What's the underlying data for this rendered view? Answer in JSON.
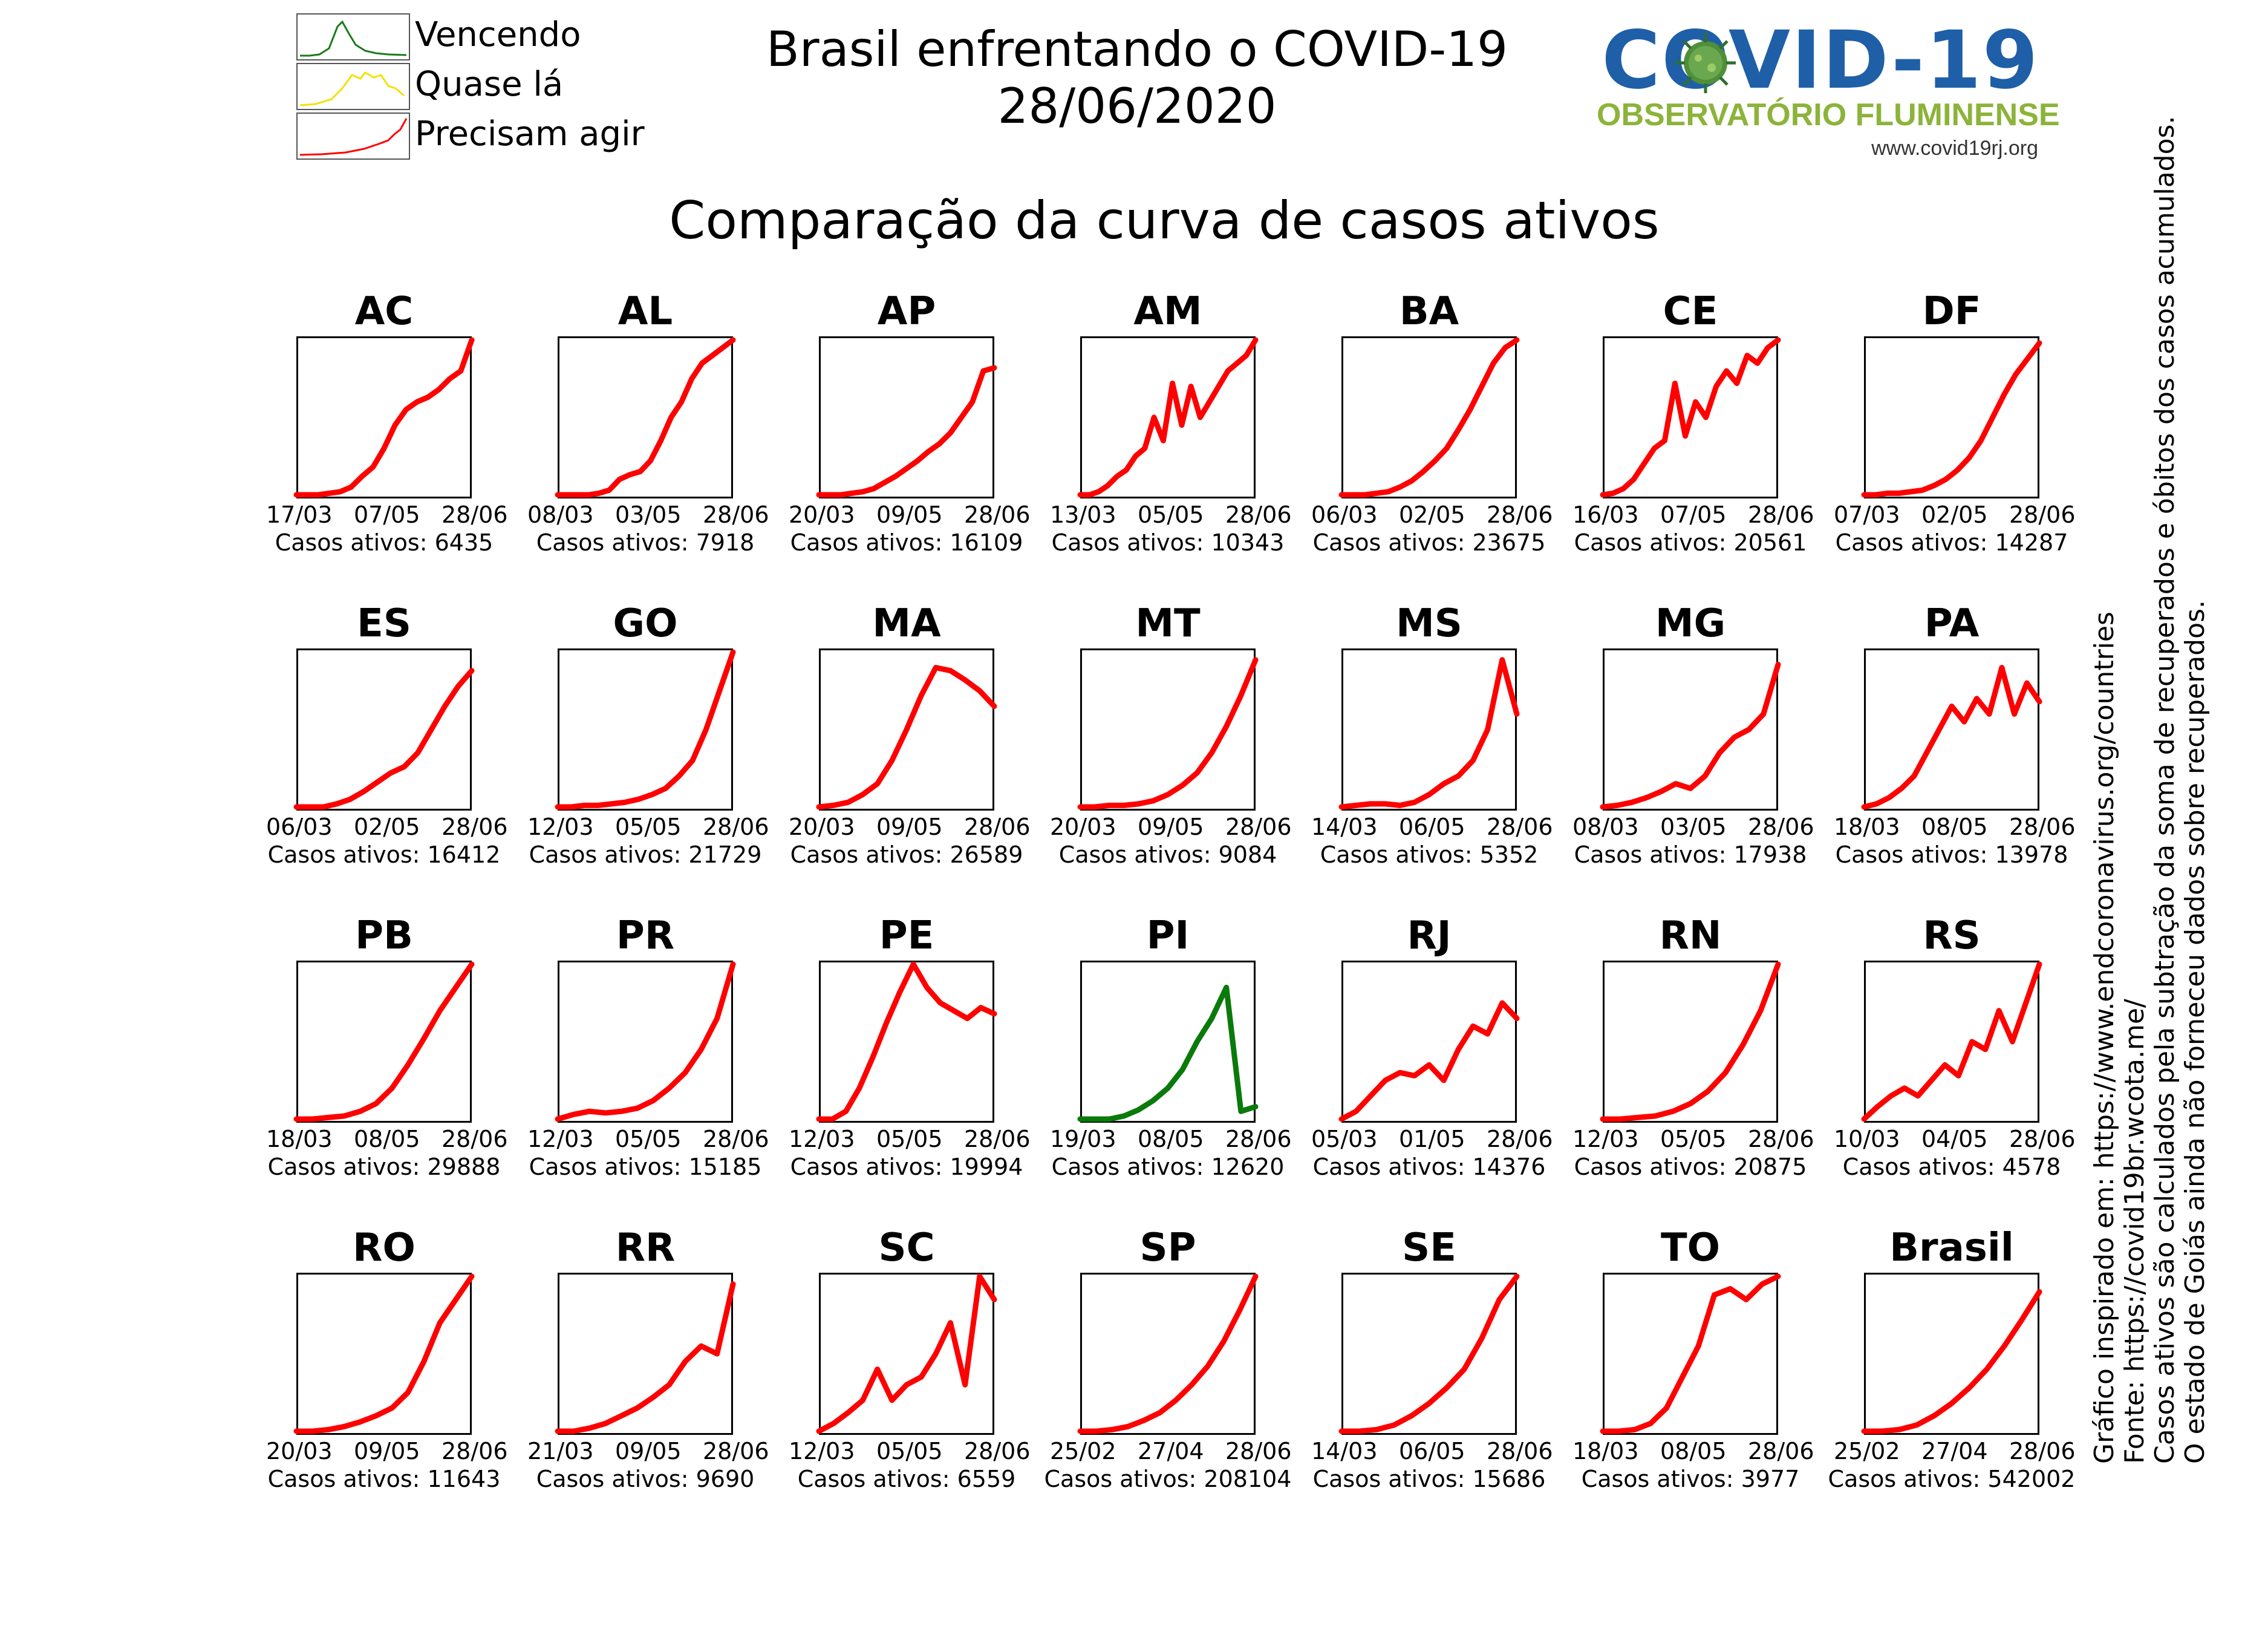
{
  "header": {
    "title_line1": "Brasil enfrentando o COVID-19",
    "title_line2": "28/06/2020",
    "subtitle": "Comparação da curva de casos ativos"
  },
  "legend": [
    {
      "label": "Vencendo",
      "color": "#1a7a1a"
    },
    {
      "label": "Quase lá",
      "color": "#f2e200"
    },
    {
      "label": "Precisam agir",
      "color": "#ff0000"
    }
  ],
  "logo": {
    "main_text": "COVID-19",
    "sub_text": "OBSERVATÓRIO FLUMINENSE",
    "url": "www.covid19rj.org",
    "icon": "virus-icon"
  },
  "notes": [
    "Gráfico inspirado em: https://www.endcoronavirus.org/countries",
    "Fonte: https://covid19br.wcota.me/",
    "Casos ativos são calculados pela subtração da soma de recuperados e óbitos dos casos acumulados.",
    "O estado de Goiás ainda não forneceu dados sobre recuperados."
  ],
  "colors": {
    "red": "#ff0000",
    "green": "#0a7a0a",
    "yellow": "#f2e200",
    "axis": "#000000"
  },
  "chart_data": {
    "type": "line",
    "panels": [
      {
        "name": "AC",
        "ticks": [
          "17/03",
          "07/05",
          "28/06"
        ],
        "total_label": "Casos ativos: 6435",
        "status": "red",
        "y": [
          0,
          0,
          0,
          0.01,
          0.02,
          0.05,
          0.12,
          0.18,
          0.3,
          0.45,
          0.55,
          0.6,
          0.63,
          0.68,
          0.75,
          0.8,
          1.0
        ]
      },
      {
        "name": "AL",
        "ticks": [
          "08/03",
          "03/05",
          "28/06"
        ],
        "total_label": "Casos ativos: 7918",
        "status": "red",
        "y": [
          0,
          0,
          0,
          0,
          0.01,
          0.03,
          0.1,
          0.13,
          0.15,
          0.22,
          0.35,
          0.5,
          0.6,
          0.75,
          0.85,
          0.9,
          0.95,
          1.0
        ]
      },
      {
        "name": "AP",
        "ticks": [
          "20/03",
          "09/05",
          "28/06"
        ],
        "total_label": "Casos ativos: 16109",
        "status": "red",
        "y": [
          0,
          0,
          0,
          0.01,
          0.02,
          0.04,
          0.08,
          0.12,
          0.17,
          0.22,
          0.28,
          0.33,
          0.4,
          0.5,
          0.6,
          0.8,
          0.82
        ]
      },
      {
        "name": "AM",
        "ticks": [
          "13/03",
          "05/05",
          "28/06"
        ],
        "total_label": "Casos ativos: 10343",
        "status": "red",
        "y": [
          0,
          0,
          0.02,
          0.06,
          0.12,
          0.16,
          0.25,
          0.3,
          0.5,
          0.35,
          0.72,
          0.45,
          0.7,
          0.5,
          0.6,
          0.7,
          0.8,
          0.85,
          0.9,
          1.0
        ]
      },
      {
        "name": "BA",
        "ticks": [
          "06/03",
          "02/05",
          "28/06"
        ],
        "total_label": "Casos ativos: 23675",
        "status": "red",
        "y": [
          0,
          0,
          0,
          0.01,
          0.02,
          0.05,
          0.09,
          0.15,
          0.22,
          0.3,
          0.42,
          0.55,
          0.7,
          0.85,
          0.95,
          1.0
        ]
      },
      {
        "name": "CE",
        "ticks": [
          "16/03",
          "07/05",
          "28/06"
        ],
        "total_label": "Casos ativos: 20561",
        "status": "red",
        "y": [
          0,
          0.01,
          0.04,
          0.1,
          0.2,
          0.3,
          0.35,
          0.72,
          0.38,
          0.6,
          0.5,
          0.7,
          0.8,
          0.72,
          0.9,
          0.85,
          0.95,
          1.0
        ]
      },
      {
        "name": "DF",
        "ticks": [
          "07/03",
          "02/05",
          "28/06"
        ],
        "total_label": "Casos ativos: 14287",
        "status": "red",
        "y": [
          0,
          0,
          0.01,
          0.01,
          0.02,
          0.03,
          0.06,
          0.1,
          0.16,
          0.24,
          0.35,
          0.5,
          0.65,
          0.78,
          0.88,
          0.98
        ]
      },
      {
        "name": "ES",
        "ticks": [
          "06/03",
          "02/05",
          "28/06"
        ],
        "total_label": "Casos ativos: 16412",
        "status": "red",
        "y": [
          0,
          0,
          0,
          0.02,
          0.05,
          0.1,
          0.16,
          0.22,
          0.26,
          0.35,
          0.5,
          0.65,
          0.78,
          0.88
        ]
      },
      {
        "name": "GO",
        "ticks": [
          "12/03",
          "05/05",
          "28/06"
        ],
        "total_label": "Casos ativos: 21729",
        "status": "red",
        "y": [
          0,
          0,
          0.01,
          0.01,
          0.02,
          0.03,
          0.05,
          0.08,
          0.12,
          0.2,
          0.3,
          0.5,
          0.75,
          1.0
        ]
      },
      {
        "name": "MA",
        "ticks": [
          "20/03",
          "09/05",
          "28/06"
        ],
        "total_label": "Casos ativos: 26589",
        "status": "red",
        "y": [
          0,
          0.01,
          0.03,
          0.08,
          0.15,
          0.3,
          0.5,
          0.72,
          0.9,
          0.88,
          0.82,
          0.75,
          0.65
        ]
      },
      {
        "name": "MT",
        "ticks": [
          "20/03",
          "09/05",
          "28/06"
        ],
        "total_label": "Casos ativos: 9084",
        "status": "red",
        "y": [
          0,
          0,
          0.01,
          0.01,
          0.02,
          0.04,
          0.08,
          0.14,
          0.22,
          0.35,
          0.52,
          0.72,
          0.95
        ]
      },
      {
        "name": "MS",
        "ticks": [
          "14/03",
          "06/05",
          "28/06"
        ],
        "total_label": "Casos ativos: 5352",
        "status": "red",
        "y": [
          0,
          0.01,
          0.02,
          0.02,
          0.01,
          0.03,
          0.08,
          0.15,
          0.2,
          0.3,
          0.5,
          0.95,
          0.6
        ]
      },
      {
        "name": "MG",
        "ticks": [
          "08/03",
          "03/05",
          "28/06"
        ],
        "total_label": "Casos ativos: 17938",
        "status": "red",
        "y": [
          0,
          0.01,
          0.03,
          0.06,
          0.1,
          0.15,
          0.12,
          0.2,
          0.35,
          0.45,
          0.5,
          0.6,
          0.92
        ]
      },
      {
        "name": "PA",
        "ticks": [
          "18/03",
          "08/05",
          "28/06"
        ],
        "total_label": "Casos ativos: 13978",
        "status": "red",
        "y": [
          0,
          0.02,
          0.06,
          0.12,
          0.2,
          0.35,
          0.5,
          0.65,
          0.55,
          0.7,
          0.6,
          0.9,
          0.6,
          0.8,
          0.68
        ]
      },
      {
        "name": "PB",
        "ticks": [
          "18/03",
          "08/05",
          "28/06"
        ],
        "total_label": "Casos ativos: 29888",
        "status": "red",
        "y": [
          0,
          0,
          0.01,
          0.02,
          0.05,
          0.1,
          0.2,
          0.35,
          0.52,
          0.7,
          0.85,
          1.0
        ]
      },
      {
        "name": "PR",
        "ticks": [
          "12/03",
          "05/05",
          "28/06"
        ],
        "total_label": "Casos ativos: 15185",
        "status": "red",
        "y": [
          0,
          0.03,
          0.05,
          0.04,
          0.05,
          0.07,
          0.12,
          0.2,
          0.3,
          0.45,
          0.65,
          1.0
        ]
      },
      {
        "name": "PE",
        "ticks": [
          "12/03",
          "05/05",
          "28/06"
        ],
        "total_label": "Casos ativos: 19994",
        "status": "red",
        "y": [
          0,
          0,
          0.05,
          0.2,
          0.4,
          0.62,
          0.82,
          1.0,
          0.85,
          0.75,
          0.7,
          0.65,
          0.72,
          0.68
        ]
      },
      {
        "name": "PI",
        "ticks": [
          "19/03",
          "08/05",
          "28/06"
        ],
        "total_label": "Casos ativos: 12620",
        "status": "green",
        "y": [
          0,
          0,
          0,
          0.02,
          0.06,
          0.12,
          0.2,
          0.32,
          0.5,
          0.65,
          0.85,
          0.05,
          0.08
        ]
      },
      {
        "name": "RJ",
        "ticks": [
          "05/03",
          "01/05",
          "28/06"
        ],
        "total_label": "Casos ativos: 14376",
        "status": "red",
        "y": [
          0,
          0.05,
          0.15,
          0.25,
          0.3,
          0.28,
          0.35,
          0.25,
          0.45,
          0.6,
          0.55,
          0.75,
          0.65
        ]
      },
      {
        "name": "RN",
        "ticks": [
          "12/03",
          "05/05",
          "28/06"
        ],
        "total_label": "Casos ativos: 20875",
        "status": "red",
        "y": [
          0,
          0,
          0.01,
          0.02,
          0.05,
          0.1,
          0.18,
          0.3,
          0.48,
          0.7,
          1.0
        ]
      },
      {
        "name": "RS",
        "ticks": [
          "10/03",
          "04/05",
          "28/06"
        ],
        "total_label": "Casos ativos: 4578",
        "status": "red",
        "y": [
          0,
          0.08,
          0.15,
          0.2,
          0.15,
          0.25,
          0.35,
          0.28,
          0.5,
          0.45,
          0.7,
          0.5,
          0.75,
          1.0
        ]
      },
      {
        "name": "RO",
        "ticks": [
          "20/03",
          "09/05",
          "28/06"
        ],
        "total_label": "Casos ativos: 11643",
        "status": "red",
        "y": [
          0,
          0,
          0.01,
          0.03,
          0.06,
          0.1,
          0.15,
          0.25,
          0.45,
          0.7,
          0.85,
          1.0
        ]
      },
      {
        "name": "RR",
        "ticks": [
          "21/03",
          "09/05",
          "28/06"
        ],
        "total_label": "Casos ativos: 9690",
        "status": "red",
        "y": [
          0,
          0,
          0.02,
          0.05,
          0.1,
          0.15,
          0.22,
          0.3,
          0.45,
          0.55,
          0.5,
          0.95
        ]
      },
      {
        "name": "SC",
        "ticks": [
          "12/03",
          "05/05",
          "28/06"
        ],
        "total_label": "Casos ativos: 6559",
        "status": "red",
        "y": [
          0,
          0.05,
          0.12,
          0.2,
          0.4,
          0.2,
          0.3,
          0.35,
          0.5,
          0.7,
          0.3,
          1.0,
          0.85
        ]
      },
      {
        "name": "SP",
        "ticks": [
          "25/02",
          "27/04",
          "28/06"
        ],
        "total_label": "Casos ativos: 208104",
        "status": "red",
        "y": [
          0,
          0,
          0.01,
          0.03,
          0.07,
          0.12,
          0.2,
          0.3,
          0.42,
          0.58,
          0.78,
          1.0
        ]
      },
      {
        "name": "SE",
        "ticks": [
          "14/03",
          "06/05",
          "28/06"
        ],
        "total_label": "Casos ativos: 15686",
        "status": "red",
        "y": [
          0,
          0,
          0.01,
          0.04,
          0.1,
          0.18,
          0.28,
          0.4,
          0.6,
          0.85,
          1.0
        ]
      },
      {
        "name": "TO",
        "ticks": [
          "18/03",
          "08/05",
          "28/06"
        ],
        "total_label": "Casos ativos: 3977",
        "status": "red",
        "y": [
          0,
          0,
          0.01,
          0.05,
          0.15,
          0.35,
          0.55,
          0.88,
          0.92,
          0.85,
          0.95,
          1.0
        ]
      },
      {
        "name": "Brasil",
        "ticks": [
          "25/02",
          "27/04",
          "28/06"
        ],
        "total_label": "Casos ativos: 542002",
        "status": "red",
        "y": [
          0,
          0,
          0.01,
          0.04,
          0.1,
          0.18,
          0.28,
          0.4,
          0.55,
          0.72,
          0.9
        ]
      }
    ]
  }
}
